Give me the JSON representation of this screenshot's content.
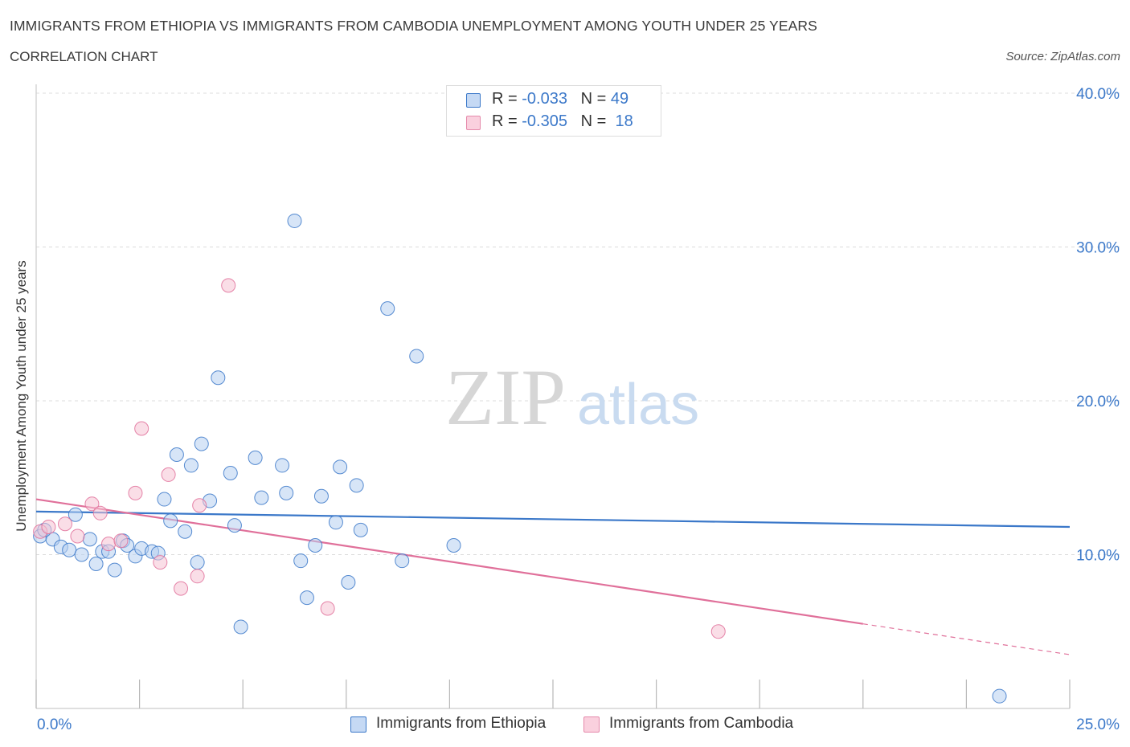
{
  "title": "IMMIGRANTS FROM ETHIOPIA VS IMMIGRANTS FROM CAMBODIA UNEMPLOYMENT AMONG YOUTH UNDER 25 YEARS",
  "subtitle": "CORRELATION CHART",
  "source": "Source: ZipAtlas.com",
  "watermark": {
    "zip": "ZIP",
    "atlas": "atlas"
  },
  "stats": [
    {
      "r_label": "R =",
      "r_value": "-0.033",
      "n_label": "N =",
      "n_value": "49",
      "color": "#3b78c9"
    },
    {
      "r_label": "R =",
      "r_value": "-0.305",
      "n_label": "N =",
      "n_value": "18",
      "color": "#e0709a"
    }
  ],
  "chart_data": {
    "type": "scatter",
    "title": "IMMIGRANTS FROM ETHIOPIA VS IMMIGRANTS FROM CAMBODIA UNEMPLOYMENT AMONG YOUTH UNDER 25 YEARS",
    "subtitle": "CORRELATION CHART",
    "xlabel": "",
    "ylabel": "Unemployment Among Youth under 25 years",
    "xlim": [
      0,
      25
    ],
    "ylim": [
      0,
      40
    ],
    "x_tick_labels": [
      "0.0%",
      "25.0%"
    ],
    "y_ticks": [
      10,
      20,
      30,
      40
    ],
    "y_tick_labels": [
      "10.0%",
      "20.0%",
      "30.0%",
      "40.0%"
    ],
    "grid": true,
    "legend_position": "bottom-center",
    "series": [
      {
        "name": "Immigrants from Ethiopia",
        "color": "#3b78c9",
        "fill": "#b7d0f1",
        "trend": {
          "x0": 0,
          "y0": 12.8,
          "x1": 25,
          "y1": 11.8
        },
        "points": [
          [
            0.1,
            11.2
          ],
          [
            0.4,
            11.0
          ],
          [
            0.6,
            10.5
          ],
          [
            0.8,
            10.3
          ],
          [
            0.95,
            12.6
          ],
          [
            1.1,
            10.0
          ],
          [
            1.3,
            11.0
          ],
          [
            1.45,
            9.4
          ],
          [
            1.6,
            10.2
          ],
          [
            1.75,
            10.2
          ],
          [
            1.9,
            9.0
          ],
          [
            2.1,
            10.9
          ],
          [
            2.2,
            10.6
          ],
          [
            2.4,
            9.9
          ],
          [
            2.55,
            10.4
          ],
          [
            2.8,
            10.2
          ],
          [
            2.95,
            10.1
          ],
          [
            3.1,
            13.6
          ],
          [
            3.25,
            12.2
          ],
          [
            3.4,
            16.5
          ],
          [
            3.6,
            11.5
          ],
          [
            3.75,
            15.8
          ],
          [
            3.9,
            9.5
          ],
          [
            4.0,
            17.2
          ],
          [
            4.2,
            13.5
          ],
          [
            4.4,
            21.5
          ],
          [
            4.7,
            15.3
          ],
          [
            4.8,
            11.9
          ],
          [
            4.95,
            5.3
          ],
          [
            5.3,
            16.3
          ],
          [
            5.45,
            13.7
          ],
          [
            5.95,
            15.8
          ],
          [
            6.05,
            14.0
          ],
          [
            6.25,
            31.7
          ],
          [
            6.4,
            9.6
          ],
          [
            6.55,
            7.2
          ],
          [
            6.75,
            10.6
          ],
          [
            6.9,
            13.8
          ],
          [
            7.25,
            12.1
          ],
          [
            7.35,
            15.7
          ],
          [
            7.55,
            8.2
          ],
          [
            7.75,
            14.5
          ],
          [
            7.85,
            11.6
          ],
          [
            8.5,
            26.0
          ],
          [
            8.85,
            9.6
          ],
          [
            9.2,
            22.9
          ],
          [
            10.1,
            10.6
          ],
          [
            23.3,
            0.8
          ],
          [
            0.2,
            11.6
          ]
        ]
      },
      {
        "name": "Immigrants from Cambodia",
        "color": "#e0709a",
        "fill": "#f6c3d4",
        "trend": {
          "x0": 0,
          "y0": 13.6,
          "x1": 20,
          "y1": 5.5,
          "dash_to_x": 25,
          "dash_to_y": 3.5
        },
        "points": [
          [
            0.1,
            11.5
          ],
          [
            0.3,
            11.8
          ],
          [
            0.7,
            12.0
          ],
          [
            1.0,
            11.2
          ],
          [
            1.35,
            13.3
          ],
          [
            1.55,
            12.7
          ],
          [
            1.75,
            10.7
          ],
          [
            2.05,
            10.9
          ],
          [
            2.4,
            14.0
          ],
          [
            2.55,
            18.2
          ],
          [
            3.0,
            9.5
          ],
          [
            3.2,
            15.2
          ],
          [
            3.5,
            7.8
          ],
          [
            3.9,
            8.6
          ],
          [
            3.95,
            13.2
          ],
          [
            4.65,
            27.5
          ],
          [
            7.05,
            6.5
          ],
          [
            16.5,
            5.0
          ]
        ]
      }
    ]
  },
  "legend": [
    {
      "label": "Immigrants from Ethiopia",
      "color": "#3b78c9",
      "fill": "#c5d9f4"
    },
    {
      "label": "Immigrants from Cambodia",
      "color": "#e58aab",
      "fill": "#fad0de"
    }
  ]
}
